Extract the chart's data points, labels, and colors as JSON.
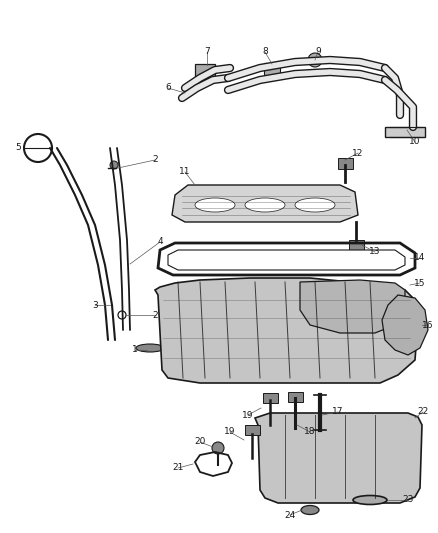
{
  "bg_color": "#ffffff",
  "fig_width": 4.38,
  "fig_height": 5.33,
  "dpi": 100,
  "line_color": "#1a1a1a",
  "label_color": "#1a1a1a",
  "font_size": 6.5,
  "gray_fill": "#d0d0d0",
  "light_gray": "#e8e8e8",
  "dark_gray": "#888888"
}
